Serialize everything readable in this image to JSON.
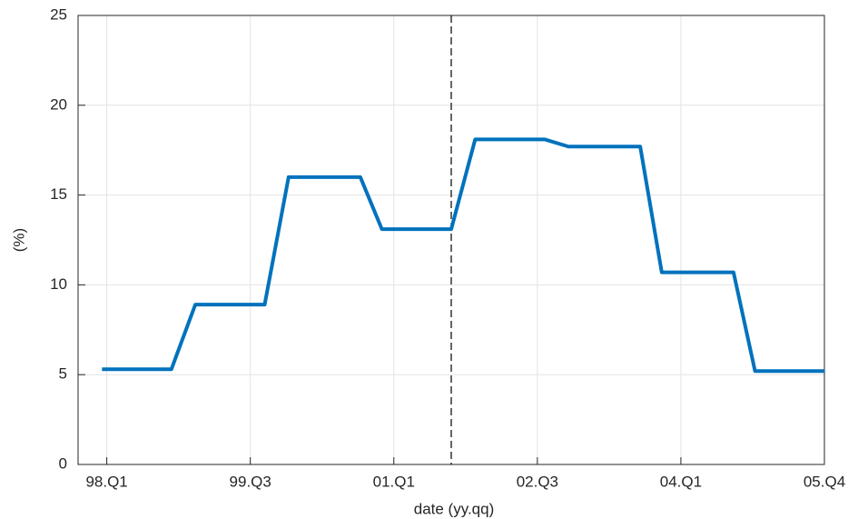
{
  "chart_data": {
    "type": "line",
    "x_label": "date (yy.qq)",
    "y_label": "(%)",
    "series": [
      {
        "color": "#0072bd",
        "x": [
          -0.2,
          2.7,
          3.7,
          6.6,
          7.6,
          10.6,
          11.5,
          14.4,
          15.4,
          18.3,
          19.3,
          22.3,
          23.2,
          26.2,
          27.1,
          30
        ],
        "values": [
          5.3,
          5.3,
          8.9,
          8.9,
          16.0,
          16.0,
          13.1,
          13.1,
          18.1,
          18.1,
          17.7,
          17.7,
          10.7,
          10.7,
          5.2,
          5.2
        ]
      }
    ],
    "vline": 14.4,
    "xlim": [
      -1.2,
      30
    ],
    "xticks": [
      {
        "value": 0,
        "label": "98.Q1"
      },
      {
        "value": 6,
        "label": "99.Q3"
      },
      {
        "value": 12,
        "label": "01.Q1"
      },
      {
        "value": 18,
        "label": "02.Q3"
      },
      {
        "value": 24,
        "label": "04.Q1"
      },
      {
        "value": 30,
        "label": "05.Q4"
      }
    ],
    "ylim": [
      0,
      25
    ],
    "yticks": [
      0,
      5,
      10,
      15,
      20,
      25
    ],
    "grid": true
  }
}
